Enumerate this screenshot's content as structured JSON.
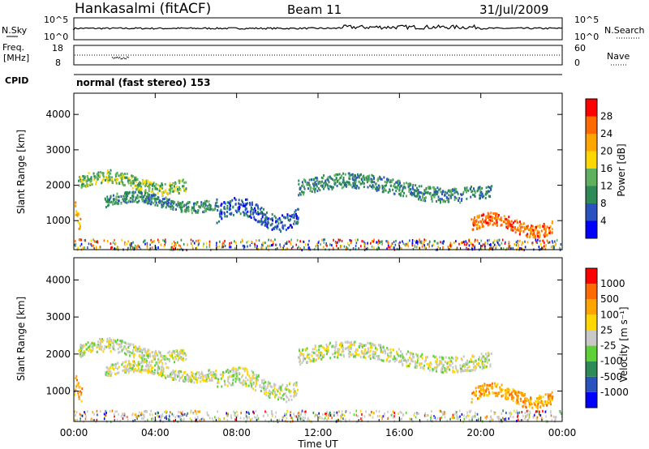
{
  "header": {
    "station": "Hankasalmi (fitACF)",
    "beam": "Beam 11",
    "date": "31/Jul/2009"
  },
  "top_panels": {
    "nsky_label": "N.Sky",
    "nsky_ticks": [
      "10^5",
      "10^0"
    ],
    "nsearch_label": "N.Search",
    "nsearch_ticks": [
      "10^5",
      "10^0"
    ],
    "freq_label_line1": "Freq.",
    "freq_label_line2": "[MHz]",
    "freq_ticks": [
      "18",
      "8"
    ],
    "nave_label": "Nave",
    "nave_ticks": [
      "60",
      "0"
    ],
    "cpid_label": "CPID",
    "cpid_text": "normal (fast stereo) 153"
  },
  "colors": {
    "power_scale": [
      "#0000ff",
      "#2a52be",
      "#2e8b57",
      "#5fb05f",
      "#ffd700",
      "#ffa500",
      "#ff6a00",
      "#ff0000"
    ],
    "velocity_scale": [
      "#ff0000",
      "#ff6a00",
      "#ffa500",
      "#ffd700",
      "#c8c8c8",
      "#5fd03a",
      "#2e8b57",
      "#2a52be",
      "#0000ff"
    ],
    "ground_scatter": "#c0c0c0"
  },
  "chart_data": [
    {
      "type": "heatmap",
      "name": "power",
      "ylabel": "Slant Range [km]",
      "xlabel": "",
      "x_ticks": [
        "00:00",
        "04:00",
        "08:00",
        "12:00",
        "16:00",
        "20:00",
        "00:00"
      ],
      "y_ticks": [
        "1000",
        "2000",
        "3000",
        "4000"
      ],
      "ylim": [
        180,
        4600
      ],
      "colorbar_label": "Power [dB]",
      "colorbar_ticks": [
        "4",
        "8",
        "12",
        "16",
        "20",
        "24",
        "28"
      ],
      "scatter_bands": [
        {
          "t0": 0.0,
          "t1": 0.3,
          "r0": 800,
          "r1": 1600,
          "level": 5
        },
        {
          "t0": 0.2,
          "t1": 5.5,
          "r0": 1800,
          "r1": 2400,
          "level": 3
        },
        {
          "t0": 1.5,
          "t1": 7.0,
          "r0": 1300,
          "r1": 1800,
          "level": 2
        },
        {
          "t0": 7.0,
          "t1": 11.0,
          "r0": 800,
          "r1": 1600,
          "level": 1
        },
        {
          "t0": 11.0,
          "t1": 20.5,
          "r0": 1600,
          "r1": 2300,
          "level": 2
        },
        {
          "t0": 19.5,
          "t1": 23.5,
          "r0": 600,
          "r1": 1200,
          "level": 6
        }
      ]
    },
    {
      "type": "heatmap",
      "name": "velocity",
      "ylabel": "Slant Range [km]",
      "xlabel": "Time UT",
      "x_ticks": [
        "00:00",
        "04:00",
        "08:00",
        "12:00",
        "16:00",
        "20:00",
        "00:00"
      ],
      "y_ticks": [
        "1000",
        "2000",
        "3000",
        "4000"
      ],
      "ylim": [
        180,
        4600
      ],
      "colorbar_label": "Velocity [m s⁻¹]",
      "colorbar_ticks": [
        "1000",
        "500",
        "100",
        "25",
        "-25",
        "-100",
        "-500",
        "-1000"
      ],
      "scatter_bands": [
        {
          "t0": 0.0,
          "t1": 0.4,
          "r0": 700,
          "r1": 1400,
          "level": 2
        },
        {
          "t0": 0.2,
          "t1": 5.5,
          "r0": 1800,
          "r1": 2400,
          "level": 4
        },
        {
          "t0": 1.5,
          "t1": 7.0,
          "r0": 1300,
          "r1": 1800,
          "level": 4
        },
        {
          "t0": 7.0,
          "t1": 11.0,
          "r0": 800,
          "r1": 1600,
          "level": 4
        },
        {
          "t0": 11.0,
          "t1": 20.5,
          "r0": 1600,
          "r1": 2300,
          "level": 4
        },
        {
          "t0": 19.5,
          "t1": 23.5,
          "r0": 600,
          "r1": 1200,
          "level": 2
        }
      ]
    }
  ]
}
